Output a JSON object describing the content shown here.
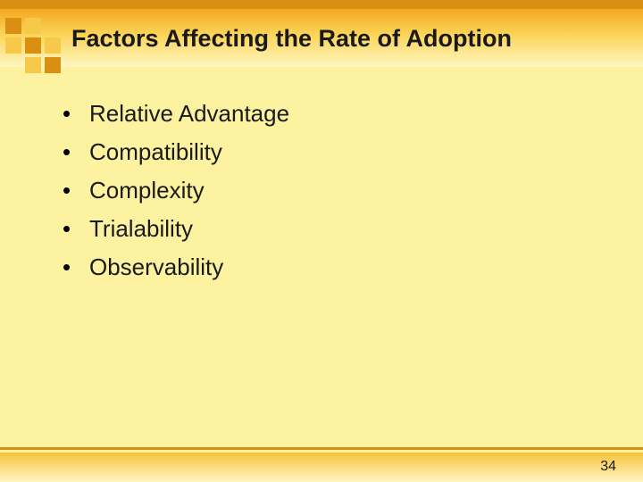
{
  "slide": {
    "title": "Factors Affecting the Rate of Adoption",
    "page_number": "34",
    "bullets": [
      "Relative Advantage",
      "Compatibility",
      "Complexity",
      "Trialability",
      "Observability"
    ]
  },
  "style": {
    "background_color": "#fdf29f",
    "accent_color": "#d98f12",
    "gradient_top": "#f3a81e",
    "gradient_bottom": "#fef6c2",
    "title_fontsize": 27,
    "bullet_fontsize": 26,
    "pagenum_fontsize": 16,
    "text_color": "#1a1a1a"
  }
}
